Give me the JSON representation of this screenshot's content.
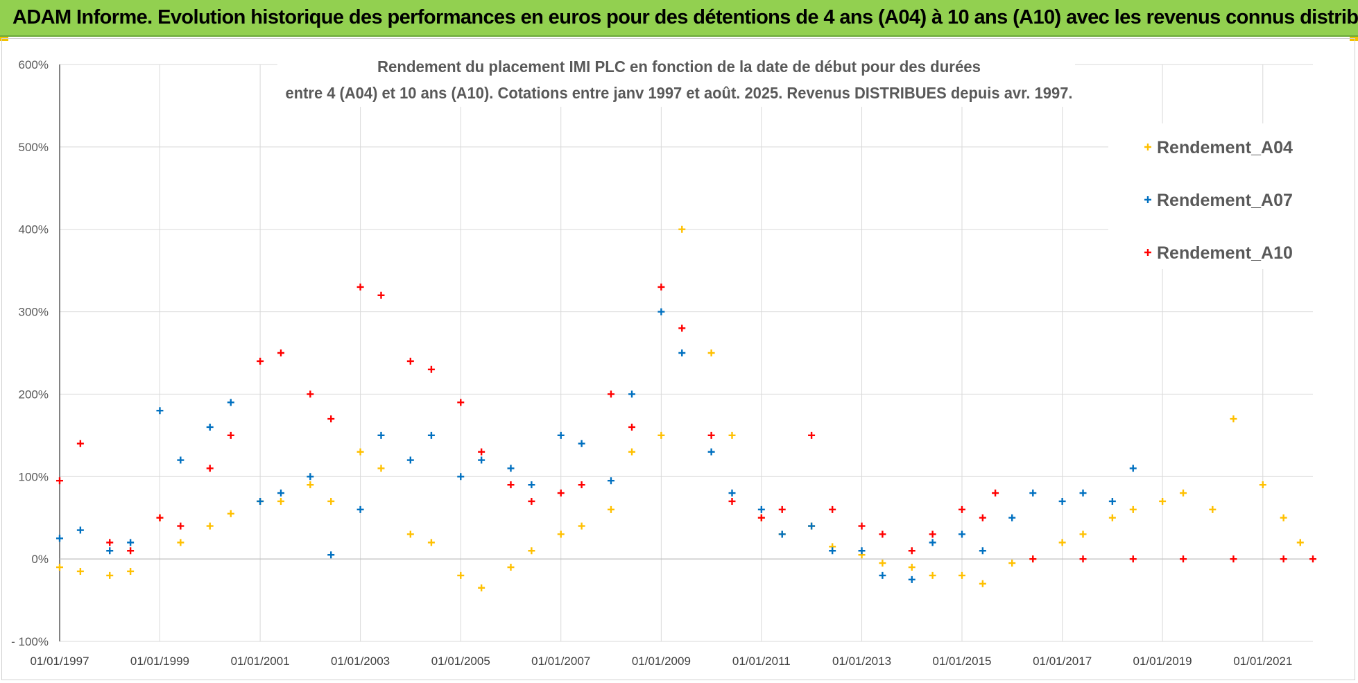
{
  "banner": {
    "title": "ADAM Informe. Evolution historique des performances en euros pour des détentions de 4 ans (A04) à 10 ans (A10) avec les revenus connus distribués"
  },
  "colors": {
    "banner": "#92d050",
    "A04": "#ffc000",
    "A07": "#0070c0",
    "A10": "#ff0000",
    "grid": "#d9d9d9"
  },
  "chart_data": {
    "type": "scatter",
    "title": "Rendement du placement IMI PLC en fonction de la date de début pour des durées",
    "subtitle": "entre 4 (A04) et 10 ans (A10).  Cotations entre janv 1997 et août. 2025. Revenus DISTRIBUES depuis avr. 1997.",
    "xlabel": "",
    "ylabel": "",
    "x_range": [
      "1997-01-01",
      "2022-01-01"
    ],
    "x_ticks": [
      "01/01/1997",
      "01/01/1999",
      "01/01/2001",
      "01/01/2003",
      "01/01/2005",
      "01/01/2007",
      "01/01/2009",
      "01/01/2011",
      "01/01/2013",
      "01/01/2015",
      "01/01/2017",
      "01/01/2019",
      "01/01/2021"
    ],
    "ylim": [
      -100,
      600
    ],
    "y_ticks": [
      -100,
      0,
      100,
      200,
      300,
      400,
      500,
      600
    ],
    "y_tick_labels": [
      "- 100%",
      "0%",
      "100%",
      "200%",
      "300%",
      "400%",
      "500%",
      "600%"
    ],
    "grid": true,
    "legend_position": "top-right",
    "marker": "+",
    "series": [
      {
        "name": "Rendement_A04",
        "color": "#ffc000",
        "x": [
          "1997-01-01",
          "1997-06-01",
          "1998-01-01",
          "1998-06-01",
          "1999-01-01",
          "1999-06-01",
          "2000-01-01",
          "2000-06-01",
          "2001-01-01",
          "2001-06-01",
          "2002-01-01",
          "2002-06-01",
          "2003-01-01",
          "2003-06-01",
          "2004-01-01",
          "2004-06-01",
          "2005-01-01",
          "2005-06-01",
          "2006-01-01",
          "2006-06-01",
          "2007-01-01",
          "2007-06-01",
          "2008-01-01",
          "2008-06-01",
          "2009-01-01",
          "2009-06-01",
          "2010-01-01",
          "2010-06-01",
          "2011-01-01",
          "2011-06-01",
          "2012-01-01",
          "2012-06-01",
          "2013-01-01",
          "2013-06-01",
          "2014-01-01",
          "2014-06-01",
          "2015-01-01",
          "2015-06-01",
          "2016-01-01",
          "2016-06-01",
          "2017-01-01",
          "2017-06-01",
          "2018-01-01",
          "2018-06-01",
          "2019-01-01",
          "2019-06-01",
          "2020-01-01",
          "2020-06-01",
          "2021-01-01",
          "2021-06-01",
          "2021-10-01"
        ],
        "y": [
          -10,
          -15,
          -20,
          -15,
          50,
          20,
          40,
          55,
          70,
          70,
          90,
          70,
          130,
          110,
          30,
          20,
          -20,
          -35,
          -10,
          10,
          30,
          40,
          60,
          130,
          150,
          400,
          250,
          150,
          50,
          30,
          40,
          15,
          5,
          -5,
          -10,
          -20,
          -20,
          -30,
          -5,
          0,
          20,
          30,
          50,
          60,
          70,
          80,
          60,
          170,
          90,
          50,
          20
        ]
      },
      {
        "name": "Rendement_A07",
        "color": "#0070c0",
        "x": [
          "1997-01-01",
          "1997-06-01",
          "1998-01-01",
          "1998-06-01",
          "1999-01-01",
          "1999-06-01",
          "2000-01-01",
          "2000-06-01",
          "2001-01-01",
          "2001-06-01",
          "2002-01-01",
          "2002-06-01",
          "2003-01-01",
          "2003-06-01",
          "2004-01-01",
          "2004-06-01",
          "2005-01-01",
          "2005-06-01",
          "2006-01-01",
          "2006-06-01",
          "2007-01-01",
          "2007-06-01",
          "2008-01-01",
          "2008-06-01",
          "2009-01-01",
          "2009-06-01",
          "2010-01-01",
          "2010-06-01",
          "2011-01-01",
          "2011-06-01",
          "2012-01-01",
          "2012-06-01",
          "2013-01-01",
          "2013-06-01",
          "2014-01-01",
          "2014-06-01",
          "2015-01-01",
          "2015-06-01",
          "2016-01-01",
          "2016-06-01",
          "2017-01-01",
          "2017-06-01",
          "2018-01-01",
          "2018-06-01"
        ],
        "y": [
          25,
          35,
          10,
          20,
          180,
          120,
          160,
          190,
          70,
          80,
          100,
          5,
          60,
          150,
          120,
          150,
          100,
          120,
          110,
          90,
          150,
          140,
          95,
          200,
          300,
          250,
          130,
          80,
          60,
          30,
          40,
          10,
          10,
          -20,
          -25,
          20,
          30,
          10,
          50,
          80,
          70,
          80,
          70,
          110
        ]
      },
      {
        "name": "Rendement_A10",
        "color": "#ff0000",
        "x": [
          "1997-01-01",
          "1997-06-01",
          "1998-01-01",
          "1998-06-01",
          "1999-01-01",
          "1999-06-01",
          "2000-01-01",
          "2000-06-01",
          "2001-01-01",
          "2001-06-01",
          "2002-01-01",
          "2002-06-01",
          "2003-01-01",
          "2003-06-01",
          "2004-01-01",
          "2004-06-01",
          "2005-01-01",
          "2005-06-01",
          "2006-01-01",
          "2006-06-01",
          "2007-01-01",
          "2007-06-01",
          "2008-01-01",
          "2008-06-01",
          "2009-01-01",
          "2009-06-01",
          "2010-01-01",
          "2010-06-01",
          "2011-01-01",
          "2011-06-01",
          "2012-01-01",
          "2012-06-01",
          "2013-01-01",
          "2013-06-01",
          "2014-01-01",
          "2014-06-01",
          "2015-01-01",
          "2015-06-01",
          "2015-09-01",
          "2016-06-01",
          "2017-06-01",
          "2018-06-01",
          "2019-06-01",
          "2020-06-01",
          "2021-06-01",
          "2022-01-01"
        ],
        "y": [
          95,
          140,
          20,
          10,
          50,
          40,
          110,
          150,
          240,
          250,
          200,
          170,
          330,
          320,
          240,
          230,
          190,
          130,
          90,
          70,
          80,
          90,
          200,
          160,
          330,
          280,
          150,
          70,
          50,
          60,
          150,
          60,
          40,
          30,
          10,
          30,
          60,
          50,
          80,
          0,
          0,
          0,
          0,
          0,
          0,
          0
        ]
      }
    ]
  }
}
